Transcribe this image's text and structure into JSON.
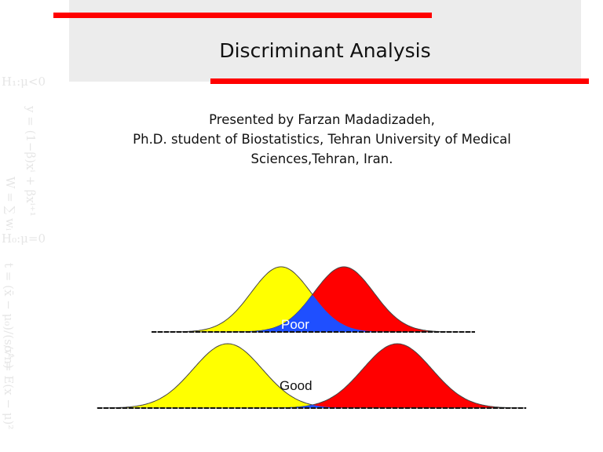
{
  "slide": {
    "title": "Discriminant Analysis",
    "presenter_line": "Presented by Farzan Madadizadeh,",
    "affiliation_line": "Ph.D. student of Biostatistics, Tehran University of Medical Sciences,Tehran, Iran.",
    "accent_color": "#ff0000"
  },
  "watermark_formulas": [
    "H₁:μ<0",
    "y = (1−β)xⁱ + βxⁱ⁺¹",
    "W = ∑ wᵢ",
    "H₀:μ=0",
    "t = (x̄ − μ₀)/(s/√n)",
    "σ² = E(x − μ)²"
  ],
  "figure": {
    "poor_label": "Poor",
    "good_label": "Good",
    "colors": {
      "group1": "#ffff00",
      "group2": "#ff0000",
      "overlap": "#1f4fff"
    }
  }
}
